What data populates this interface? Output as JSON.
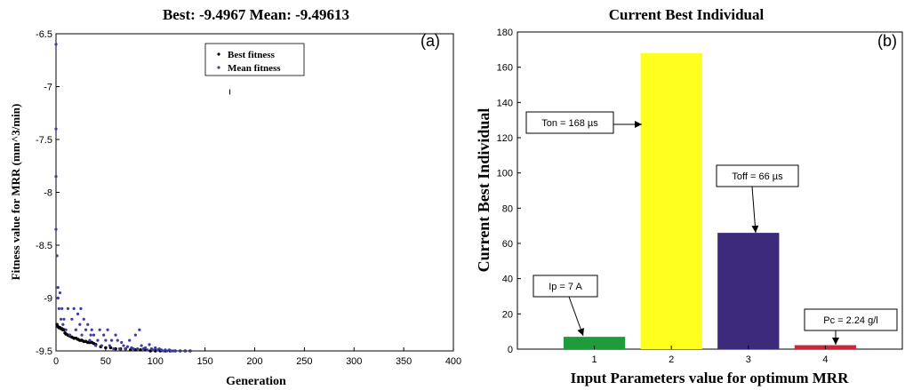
{
  "chart_data": [
    {
      "type": "scatter",
      "panel_label": "(a)",
      "title": "Best: -9.4967 Mean: -9.49613",
      "xlabel": "Generation",
      "ylabel": "Fitness value for MRR (mm^3/min)",
      "xlim": [
        0,
        400
      ],
      "ylim": [
        -9.5,
        -6.5
      ],
      "xticks": [
        "0",
        "50",
        "100",
        "150",
        "200",
        "250",
        "300",
        "350",
        "400"
      ],
      "yticks": [
        "-6.5",
        "-7",
        "-7.5",
        "-8",
        "-8.5",
        "-9",
        "-9.5"
      ],
      "legend": {
        "position": "top-center",
        "entries": [
          "Best fitness",
          "Mean fitness"
        ]
      },
      "series": [
        {
          "name": "Best fitness",
          "color": "#000000",
          "x": [
            1,
            2,
            3,
            4,
            5,
            6,
            7,
            8,
            9,
            10,
            12,
            14,
            16,
            18,
            20,
            22,
            24,
            26,
            28,
            30,
            32,
            34,
            36,
            38,
            40,
            45,
            50,
            55,
            60,
            65,
            70,
            75,
            80,
            85,
            90,
            95,
            100,
            105,
            110,
            115,
            120,
            125,
            130,
            135
          ],
          "y": [
            -9.25,
            -9.27,
            -9.28,
            -9.28,
            -9.29,
            -9.29,
            -9.3,
            -9.3,
            -9.33,
            -9.34,
            -9.35,
            -9.36,
            -9.37,
            -9.38,
            -9.38,
            -9.39,
            -9.4,
            -9.4,
            -9.41,
            -9.41,
            -9.42,
            -9.42,
            -9.42,
            -9.43,
            -9.44,
            -9.46,
            -9.47,
            -9.47,
            -9.48,
            -9.48,
            -9.48,
            -9.49,
            -9.49,
            -9.49,
            -9.49,
            -9.5,
            -9.5,
            -9.5,
            -9.5,
            -9.5,
            -9.5,
            -9.5,
            -9.5,
            -9.5
          ]
        },
        {
          "name": "Mean fitness",
          "color": "#3c3ca0",
          "x": [
            0,
            0,
            0,
            0,
            1,
            2,
            2,
            3,
            4,
            5,
            6,
            7,
            8,
            10,
            12,
            14,
            16,
            18,
            20,
            22,
            24,
            25,
            26,
            28,
            30,
            32,
            34,
            35,
            36,
            38,
            40,
            42,
            44,
            46,
            48,
            50,
            52,
            54,
            56,
            58,
            60,
            62,
            64,
            66,
            68,
            70,
            72,
            74,
            76,
            78,
            80,
            82,
            84,
            86,
            88,
            90,
            92,
            94,
            96,
            98,
            100,
            102,
            104,
            106,
            108,
            110,
            112,
            114,
            116,
            118,
            120,
            125,
            130,
            135
          ],
          "y": [
            -6.6,
            -7.4,
            -7.85,
            -8.35,
            -8.6,
            -8.9,
            -9.0,
            -9.1,
            -8.95,
            -9.2,
            -9.1,
            -9.25,
            -9.2,
            -9.3,
            -9.1,
            -9.35,
            -9.2,
            -9.1,
            -9.3,
            -9.15,
            -9.25,
            -9.1,
            -9.35,
            -9.2,
            -9.3,
            -9.25,
            -9.4,
            -9.35,
            -9.3,
            -9.35,
            -9.45,
            -9.4,
            -9.3,
            -9.45,
            -9.35,
            -9.4,
            -9.3,
            -9.45,
            -9.4,
            -9.48,
            -9.35,
            -9.4,
            -9.48,
            -9.42,
            -9.45,
            -9.48,
            -9.46,
            -9.4,
            -9.47,
            -9.48,
            -9.35,
            -9.48,
            -9.3,
            -9.45,
            -9.48,
            -9.47,
            -9.49,
            -9.44,
            -9.48,
            -9.49,
            -9.47,
            -9.49,
            -9.48,
            -9.49,
            -9.5,
            -9.49,
            -9.5,
            -9.49,
            -9.5,
            -9.5,
            -9.5,
            -9.5,
            -9.5,
            -9.5
          ]
        }
      ],
      "stray_marker": {
        "x": 175,
        "y": -7.05
      }
    },
    {
      "type": "bar",
      "panel_label": "(b)",
      "title": "Current Best Individual",
      "xlabel": "Input Parameters value for optimum MRR",
      "ylabel": "Current Best Individual",
      "categories": [
        "1",
        "2",
        "3",
        "4"
      ],
      "values": [
        7,
        168,
        66,
        2.24
      ],
      "colors": [
        "#1e9c3c",
        "#ffff1e",
        "#3c2a7a",
        "#c8283c"
      ],
      "ylim": [
        0,
        180
      ],
      "yticks": [
        "0",
        "20",
        "40",
        "60",
        "80",
        "100",
        "120",
        "140",
        "160",
        "180"
      ],
      "annotations": [
        {
          "text": "Ip = 7 A",
          "bar": 0
        },
        {
          "text": "Ton = 168 µs",
          "bar": 1
        },
        {
          "text": "Toff = 66 µs",
          "bar": 2
        },
        {
          "text": "Pc = 2.24 g/l",
          "bar": 3
        }
      ]
    }
  ]
}
